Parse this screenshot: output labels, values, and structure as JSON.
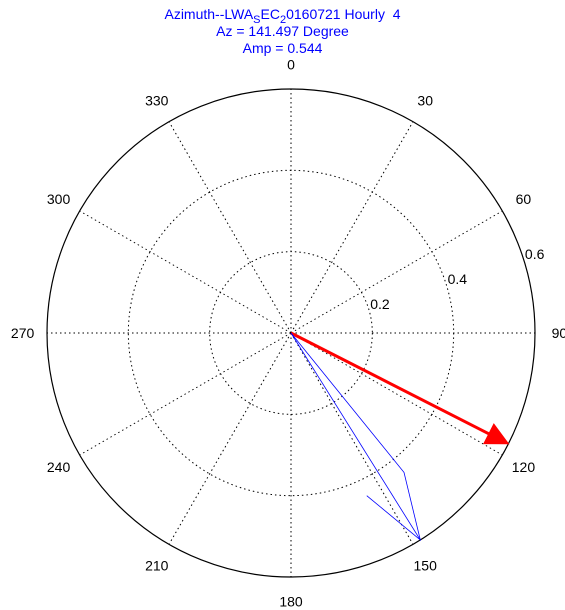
{
  "title": {
    "line1_pre": "Azimuth--LWA",
    "line1_sub1": "S",
    "line1_mid": "EC",
    "line1_sub2": "2",
    "line1_post": "0160721 Hourly  4",
    "line2": "Az = 141.497 Degree",
    "line3": "Amp = 0.544"
  },
  "chart_data": {
    "type": "polar",
    "theta_zero": "top",
    "theta_direction": "clockwise",
    "rmax": 0.6,
    "angle_ticks": [
      {
        "angle": 0,
        "label": "0"
      },
      {
        "angle": 30,
        "label": "30"
      },
      {
        "angle": 60,
        "label": "60"
      },
      {
        "angle": 90,
        "label": "90"
      },
      {
        "angle": 120,
        "label": "120"
      },
      {
        "angle": 150,
        "label": "150"
      },
      {
        "angle": 180,
        "label": "180"
      },
      {
        "angle": 210,
        "label": "210"
      },
      {
        "angle": 240,
        "label": "240"
      },
      {
        "angle": 270,
        "label": "270"
      },
      {
        "angle": 300,
        "label": "300"
      },
      {
        "angle": 330,
        "label": "330"
      }
    ],
    "radial_ticks": [
      {
        "r": 0.2,
        "label": "0.2"
      },
      {
        "r": 0.4,
        "label": "0.4"
      },
      {
        "r": 0.6,
        "label": "0.6"
      }
    ],
    "grid": true,
    "series": [
      {
        "kind": "arrow",
        "azimuth": 117.0,
        "amplitude": 0.6,
        "color": "#ff0000"
      },
      {
        "kind": "arrow",
        "azimuth": 148.0,
        "amplitude": 0.6,
        "color": "#0000ff"
      }
    ]
  }
}
